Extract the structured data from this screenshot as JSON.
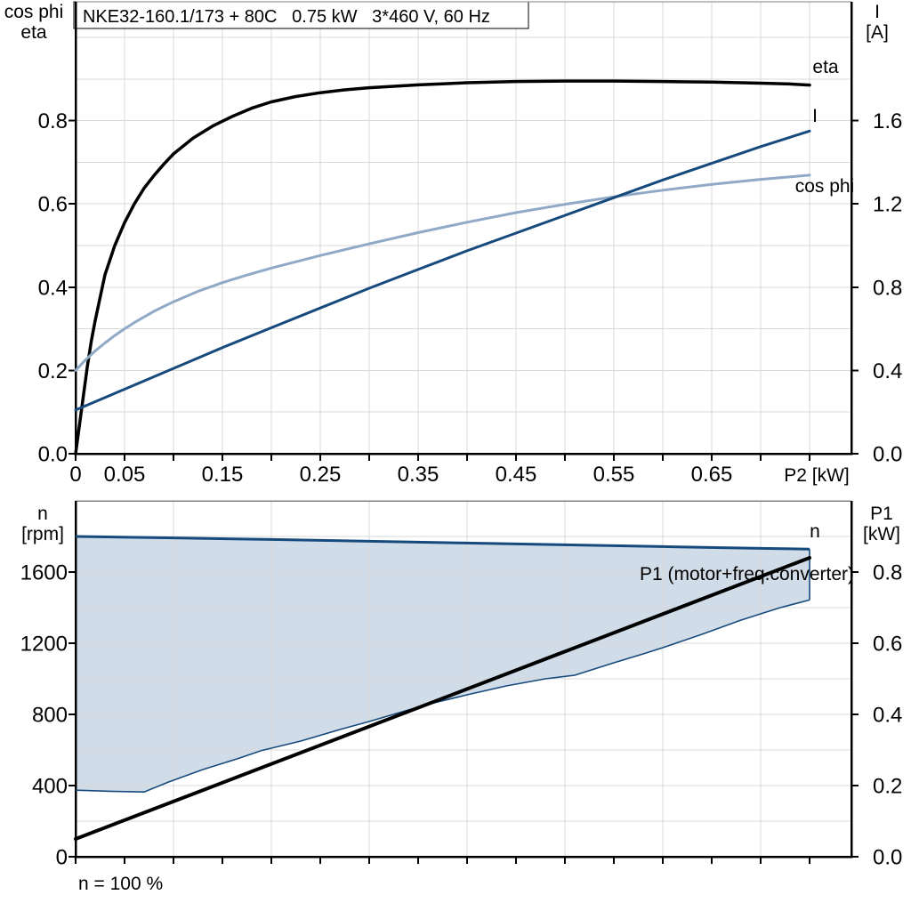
{
  "page": {
    "title_box": "NKE32-160.1/173 + 80C   0.75 kW   3*460 V, 60 Hz"
  },
  "colors": {
    "curve_black": "#000000",
    "curve_dark_blue": "#174A7C",
    "curve_light_blue": "#8FA9C6",
    "band_fill": "#D1DCE9",
    "grid": "#D8D8D8",
    "frame": "#000000",
    "frame_top_gray": "#808080"
  },
  "chart_data": [
    {
      "type": "line",
      "title": "NKE32-160.1/173 + 80C   0.75 kW   3*460 V, 60 Hz",
      "x_axis": {
        "label": "P2 [kW]",
        "lim": [
          0,
          0.79
        ],
        "tick_step": 0.05,
        "grid_step": 0.05,
        "tick_values": [
          0,
          0.05,
          0.15,
          0.25,
          0.35,
          0.45,
          0.55,
          0.65
        ],
        "tick_labels": [
          "0",
          "0.05",
          "0.15",
          "0.25",
          "0.35",
          "0.45",
          "0.55",
          "0.65"
        ]
      },
      "left_axis": {
        "title_lines": [
          "cos phi",
          "eta"
        ],
        "lim": [
          0,
          1.0
        ],
        "grid_step": 0.1,
        "tick_values": [
          0.0,
          0.2,
          0.4,
          0.6,
          0.8
        ],
        "tick_labels": [
          "0.0",
          "0.2",
          "0.4",
          "0.6",
          "0.8"
        ]
      },
      "right_axis": {
        "title_lines": [
          "I",
          "[A]"
        ],
        "lim": [
          0,
          2.0
        ],
        "tick_values": [
          0.0,
          0.4,
          0.8,
          1.2,
          1.6
        ],
        "tick_labels": [
          "0.0",
          "0.4",
          "0.8",
          "1.2",
          "1.6"
        ]
      },
      "series": [
        {
          "name": "eta",
          "label": "eta",
          "axis": "left",
          "color": "#000000",
          "width": 3.5,
          "points": [
            [
              0,
              0
            ],
            [
              0.004,
              0.07
            ],
            [
              0.008,
              0.14
            ],
            [
              0.012,
              0.21
            ],
            [
              0.016,
              0.27
            ],
            [
              0.02,
              0.32
            ],
            [
              0.03,
              0.43
            ],
            [
              0.04,
              0.5
            ],
            [
              0.05,
              0.555
            ],
            [
              0.06,
              0.6
            ],
            [
              0.07,
              0.638
            ],
            [
              0.08,
              0.668
            ],
            [
              0.09,
              0.695
            ],
            [
              0.1,
              0.72
            ],
            [
              0.12,
              0.758
            ],
            [
              0.14,
              0.787
            ],
            [
              0.16,
              0.81
            ],
            [
              0.18,
              0.83
            ],
            [
              0.2,
              0.845
            ],
            [
              0.225,
              0.858
            ],
            [
              0.25,
              0.867
            ],
            [
              0.275,
              0.874
            ],
            [
              0.3,
              0.879
            ],
            [
              0.35,
              0.886
            ],
            [
              0.4,
              0.891
            ],
            [
              0.45,
              0.894
            ],
            [
              0.5,
              0.895
            ],
            [
              0.55,
              0.895
            ],
            [
              0.6,
              0.894
            ],
            [
              0.65,
              0.8925
            ],
            [
              0.7,
              0.89
            ],
            [
              0.73,
              0.888
            ],
            [
              0.75,
              0.8855
            ]
          ]
        },
        {
          "name": "cos phi",
          "label": "cos phi",
          "axis": "left",
          "color": "#8FA9C6",
          "width": 3,
          "points": [
            [
              0,
              0.2
            ],
            [
              0.01,
              0.225
            ],
            [
              0.02,
              0.247
            ],
            [
              0.03,
              0.266
            ],
            [
              0.04,
              0.284
            ],
            [
              0.05,
              0.3
            ],
            [
              0.06,
              0.315
            ],
            [
              0.08,
              0.342
            ],
            [
              0.1,
              0.365
            ],
            [
              0.125,
              0.39
            ],
            [
              0.15,
              0.411
            ],
            [
              0.175,
              0.429
            ],
            [
              0.2,
              0.446
            ],
            [
              0.225,
              0.461
            ],
            [
              0.25,
              0.476
            ],
            [
              0.3,
              0.504
            ],
            [
              0.35,
              0.531
            ],
            [
              0.4,
              0.556
            ],
            [
              0.45,
              0.579
            ],
            [
              0.5,
              0.599
            ],
            [
              0.55,
              0.617
            ],
            [
              0.6,
              0.633
            ],
            [
              0.65,
              0.647
            ],
            [
              0.7,
              0.659
            ],
            [
              0.75,
              0.669
            ]
          ]
        },
        {
          "name": "I",
          "label": "I",
          "axis": "right",
          "color": "#174A7C",
          "width": 3,
          "points": [
            [
              0,
              0.21
            ],
            [
              0.05,
              0.31
            ],
            [
              0.1,
              0.41
            ],
            [
              0.15,
              0.51
            ],
            [
              0.2,
              0.605
            ],
            [
              0.25,
              0.7
            ],
            [
              0.3,
              0.795
            ],
            [
              0.35,
              0.885
            ],
            [
              0.4,
              0.975
            ],
            [
              0.45,
              1.06
            ],
            [
              0.5,
              1.145
            ],
            [
              0.55,
              1.23
            ],
            [
              0.6,
              1.315
            ],
            [
              0.65,
              1.395
            ],
            [
              0.7,
              1.475
            ],
            [
              0.75,
              1.55
            ]
          ]
        }
      ]
    },
    {
      "type": "line",
      "x_axis": {
        "label": "",
        "lim": [
          0,
          0.79
        ],
        "tick_step": 0.05,
        "grid_step": 0.1
      },
      "left_axis": {
        "title_lines": [
          "n",
          "[rpm]"
        ],
        "lim": [
          0,
          2000
        ],
        "tick_values": [
          0,
          400,
          800,
          1200,
          1600
        ],
        "tick_labels": [
          "0",
          "400",
          "800",
          "1200",
          "1600"
        ]
      },
      "right_axis": {
        "title_lines": [
          "P1",
          "[kW]"
        ],
        "lim": [
          0,
          1.0
        ],
        "grid_step": 0.1,
        "tick_values": [
          0.0,
          0.2,
          0.4,
          0.6,
          0.8
        ],
        "tick_labels": [
          "0.0",
          "0.2",
          "0.4",
          "0.6",
          "0.8"
        ]
      },
      "series": [
        {
          "name": "n",
          "label": "n",
          "kind": "band",
          "axis": "left",
          "fill": "#D1DCE9",
          "stroke": "#174A7C",
          "upper": [
            [
              0,
              1800
            ],
            [
              0.1,
              1792
            ],
            [
              0.2,
              1783
            ],
            [
              0.3,
              1773
            ],
            [
              0.4,
              1763
            ],
            [
              0.5,
              1753
            ],
            [
              0.6,
              1743
            ],
            [
              0.7,
              1733
            ],
            [
              0.75,
              1729
            ]
          ],
          "lower": [
            [
              0,
              374
            ],
            [
              0.04,
              367
            ],
            [
              0.07,
              364
            ],
            [
              0.095,
              420
            ],
            [
              0.13,
              490
            ],
            [
              0.165,
              550
            ],
            [
              0.19,
              597
            ],
            [
              0.23,
              650
            ],
            [
              0.27,
              715
            ],
            [
              0.3,
              760
            ],
            [
              0.34,
              825
            ],
            [
              0.37,
              870
            ],
            [
              0.4,
              910
            ],
            [
              0.44,
              960
            ],
            [
              0.48,
              1000
            ],
            [
              0.51,
              1020
            ],
            [
              0.55,
              1090
            ],
            [
              0.58,
              1140
            ],
            [
              0.6,
              1175
            ],
            [
              0.64,
              1250
            ],
            [
              0.68,
              1330
            ],
            [
              0.72,
              1400
            ],
            [
              0.75,
              1443
            ]
          ]
        },
        {
          "name": "P1",
          "label": "P1 (motor+freq.converter)",
          "kind": "line",
          "axis": "right",
          "color": "#000000",
          "width": 4,
          "points": [
            [
              0,
              0.05
            ],
            [
              0.75,
              0.84
            ]
          ]
        }
      ],
      "annotation": "n = 100 %"
    }
  ]
}
